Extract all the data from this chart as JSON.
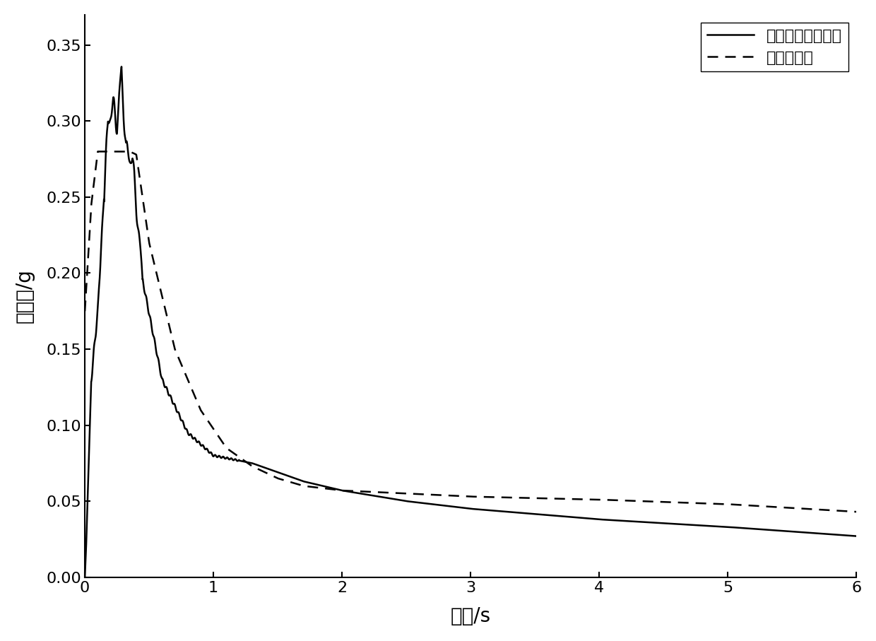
{
  "ylabel": "反应谱/g",
  "xlabel": "周期/s",
  "xlim": [
    0,
    6
  ],
  "ylim": [
    0,
    0.37
  ],
  "yticks": [
    0.0,
    0.05,
    0.1,
    0.15,
    0.2,
    0.25,
    0.3,
    0.35
  ],
  "xticks": [
    0,
    1,
    2,
    3,
    4,
    5,
    6
  ],
  "legend1": "地震动平均反应谱",
  "legend2": "规范反应谱",
  "line1_color": "#000000",
  "line2_color": "#000000",
  "background_color": "#ffffff",
  "figsize": [
    12.4,
    9.07
  ],
  "dpi": 100
}
